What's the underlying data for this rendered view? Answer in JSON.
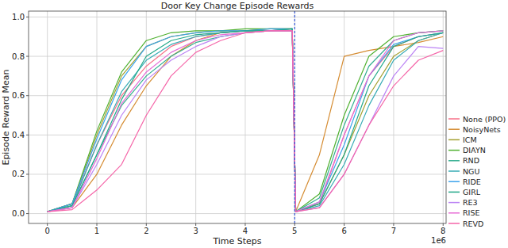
{
  "chart_data": {
    "type": "line",
    "title": "Door Key Change Episode Rewards",
    "x_label": "Time Steps",
    "y_label": "Episode Reward Mean",
    "annotations": [
      "1e6"
    ],
    "x": [
      0,
      0.5,
      1,
      1.5,
      2,
      2.5,
      3,
      3.5,
      4,
      4.5,
      4.95,
      5.02,
      5.5,
      6,
      6.5,
      7,
      7.5,
      8
    ],
    "series": [
      {
        "name": "None (PPO)",
        "color": "#f77189",
        "values": [
          0.01,
          0.05,
          0.35,
          0.6,
          0.75,
          0.85,
          0.9,
          0.92,
          0.93,
          0.93,
          0.94,
          0.01,
          0.05,
          0.4,
          0.7,
          0.85,
          0.9,
          0.92
        ]
      },
      {
        "name": "NoisyNets",
        "color": "#d58c32",
        "values": [
          0.01,
          0.03,
          0.2,
          0.45,
          0.65,
          0.8,
          0.88,
          0.92,
          0.93,
          0.93,
          0.93,
          0.01,
          0.3,
          0.8,
          0.83,
          0.85,
          0.87,
          0.9
        ]
      },
      {
        "name": "ICM",
        "color": "#a4a031",
        "values": [
          0.01,
          0.05,
          0.4,
          0.7,
          0.85,
          0.9,
          0.92,
          0.93,
          0.93,
          0.94,
          0.94,
          0.01,
          0.05,
          0.3,
          0.6,
          0.8,
          0.88,
          0.92
        ]
      },
      {
        "name": "DIAYN",
        "color": "#50b131",
        "values": [
          0.01,
          0.05,
          0.42,
          0.72,
          0.88,
          0.92,
          0.93,
          0.93,
          0.94,
          0.94,
          0.94,
          0.01,
          0.1,
          0.5,
          0.8,
          0.9,
          0.92,
          0.93
        ]
      },
      {
        "name": "RND",
        "color": "#34ae91",
        "values": [
          0.01,
          0.04,
          0.3,
          0.55,
          0.7,
          0.8,
          0.87,
          0.9,
          0.92,
          0.93,
          0.93,
          0.01,
          0.08,
          0.45,
          0.75,
          0.88,
          0.92,
          0.93
        ]
      },
      {
        "name": "NGU",
        "color": "#37abb5",
        "values": [
          0.01,
          0.04,
          0.35,
          0.62,
          0.78,
          0.86,
          0.9,
          0.92,
          0.93,
          0.93,
          0.94,
          0.01,
          0.04,
          0.25,
          0.55,
          0.78,
          0.88,
          0.92
        ]
      },
      {
        "name": "RIDE",
        "color": "#3ba3ec",
        "values": [
          0.01,
          0.05,
          0.38,
          0.68,
          0.85,
          0.9,
          0.92,
          0.93,
          0.93,
          0.94,
          0.94,
          0.01,
          0.06,
          0.35,
          0.7,
          0.86,
          0.9,
          0.92
        ]
      },
      {
        "name": "GIRL",
        "color": "#23a98a",
        "values": [
          0.01,
          0.04,
          0.3,
          0.58,
          0.8,
          0.88,
          0.91,
          0.92,
          0.93,
          0.93,
          0.94,
          0.01,
          0.05,
          0.3,
          0.65,
          0.85,
          0.9,
          0.92
        ]
      },
      {
        "name": "RE3",
        "color": "#bb83f4",
        "values": [
          0.01,
          0.03,
          0.25,
          0.5,
          0.68,
          0.78,
          0.85,
          0.9,
          0.92,
          0.93,
          0.93,
          0.01,
          0.03,
          0.2,
          0.45,
          0.7,
          0.85,
          0.84
        ]
      },
      {
        "name": "RISE",
        "color": "#e76cd6",
        "values": [
          0.01,
          0.03,
          0.28,
          0.56,
          0.72,
          0.82,
          0.88,
          0.91,
          0.92,
          0.93,
          0.93,
          0.01,
          0.06,
          0.4,
          0.7,
          0.88,
          0.92,
          0.93
        ]
      },
      {
        "name": "REVD",
        "color": "#f565a8",
        "values": [
          0.01,
          0.02,
          0.12,
          0.25,
          0.5,
          0.7,
          0.82,
          0.88,
          0.92,
          0.93,
          0.93,
          0.01,
          0.03,
          0.2,
          0.45,
          0.65,
          0.78,
          0.83
        ]
      }
    ],
    "reference_lines": [
      {
        "x": 5,
        "color": "#3b5bdb",
        "line_style": "dashed"
      }
    ],
    "xlim": [
      -0.38,
      8.06
    ],
    "ylim": [
      -0.05,
      1.03
    ],
    "xticks": [
      0,
      1,
      2,
      3,
      4,
      5,
      6,
      7,
      8
    ],
    "yticks": [
      {
        "value": 0,
        "label": "0.0"
      },
      {
        "value": 0.2,
        "label": "0.2"
      },
      {
        "value": 0.4,
        "label": "0.4"
      },
      {
        "value": 0.6,
        "label": "0.6"
      },
      {
        "value": 0.8,
        "label": "0.8"
      },
      {
        "value": 1.0,
        "label": "1.0"
      }
    ],
    "grid": true,
    "legend": "right"
  }
}
